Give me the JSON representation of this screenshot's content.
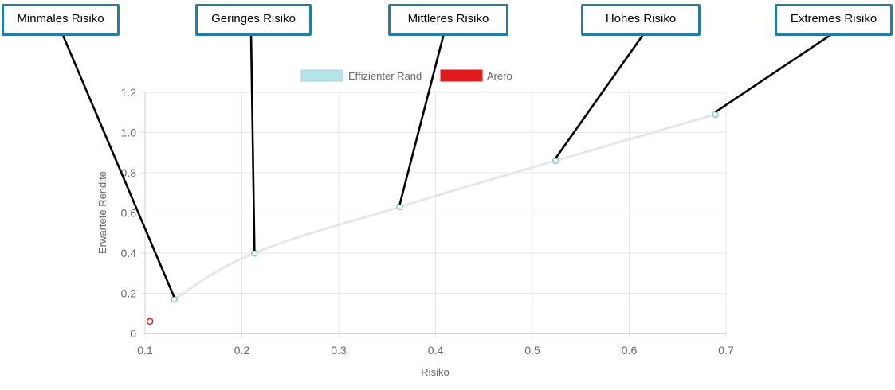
{
  "chart_data": {
    "type": "scatter",
    "xlabel": "Risiko",
    "ylabel": "Erwartete Rendite",
    "xlim": [
      0.1,
      0.7
    ],
    "ylim": [
      0,
      1.2
    ],
    "x_ticks": [
      "0.1",
      "0.2",
      "0.3",
      "0.4",
      "0.5",
      "0.6",
      "0.7"
    ],
    "y_ticks": [
      "0",
      "0.2",
      "0.4",
      "0.6",
      "0.8",
      "1.0",
      "1.2"
    ],
    "grid": true,
    "legend_position": "top-center",
    "series": [
      {
        "name": "Effizienter Rand",
        "color": "#7ec8cf",
        "line_color": "#e6e6e6",
        "points": [
          {
            "x": 0.13,
            "y": 0.17
          },
          {
            "x": 0.213,
            "y": 0.4
          },
          {
            "x": 0.363,
            "y": 0.63
          },
          {
            "x": 0.524,
            "y": 0.86
          },
          {
            "x": 0.689,
            "y": 1.09
          }
        ]
      },
      {
        "name": "Arero",
        "color": "#e31a1c",
        "points": [
          {
            "x": 0.105,
            "y": 0.06
          }
        ]
      }
    ],
    "callouts": [
      {
        "label": "Minmales Risiko",
        "point_index": 0
      },
      {
        "label": "Geringes Risiko",
        "point_index": 1
      },
      {
        "label": "Mittleres Risiko",
        "point_index": 2
      },
      {
        "label": "Hohes Risiko",
        "point_index": 3
      },
      {
        "label": "Extremes Risiko",
        "point_index": 4
      }
    ]
  }
}
